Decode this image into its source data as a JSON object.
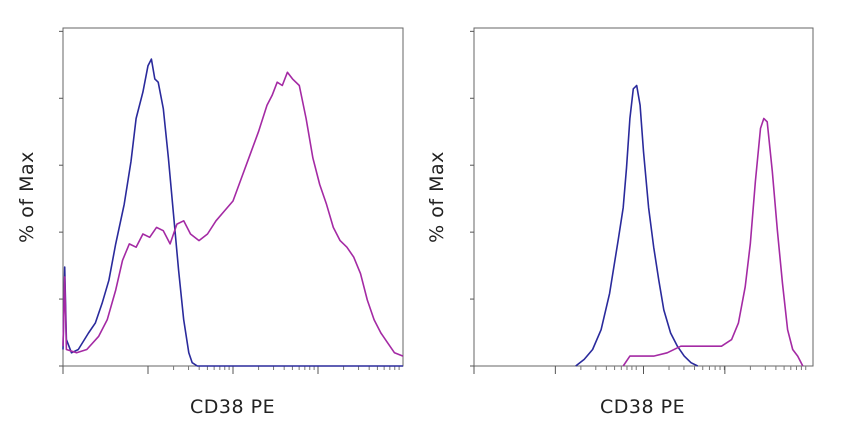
{
  "chart_data": [
    {
      "type": "line",
      "title": "",
      "xlabel": "CD38 PE",
      "ylabel": "% of Max",
      "x_scale": "log",
      "y_range": [
        0,
        100
      ],
      "series": [
        {
          "color": "#2a2a9c",
          "points": [
            [
              0.0,
              5
            ],
            [
              0.1,
              30
            ],
            [
              0.2,
              8
            ],
            [
              0.5,
              4
            ],
            [
              0.9,
              5
            ],
            [
              1.5,
              10
            ],
            [
              1.9,
              13
            ],
            [
              2.3,
              19
            ],
            [
              2.7,
              26
            ],
            [
              3.1,
              37
            ],
            [
              3.6,
              49
            ],
            [
              4.0,
              62
            ],
            [
              4.3,
              75
            ],
            [
              4.7,
              83
            ],
            [
              5.0,
              91
            ],
            [
              5.2,
              93
            ],
            [
              5.4,
              87
            ],
            [
              5.6,
              86
            ],
            [
              5.9,
              78
            ],
            [
              6.2,
              63
            ],
            [
              6.5,
              46
            ],
            [
              6.8,
              29
            ],
            [
              7.1,
              14
            ],
            [
              7.4,
              4
            ],
            [
              7.6,
              1
            ],
            [
              7.9,
              0
            ],
            [
              20.0,
              0
            ]
          ]
        },
        {
          "color": "#a42aa4",
          "points": [
            [
              0.0,
              6
            ],
            [
              0.1,
              27
            ],
            [
              0.2,
              5
            ],
            [
              0.8,
              4
            ],
            [
              1.4,
              5
            ],
            [
              2.1,
              9
            ],
            [
              2.6,
              14
            ],
            [
              3.1,
              23
            ],
            [
              3.5,
              32
            ],
            [
              3.9,
              37
            ],
            [
              4.3,
              36
            ],
            [
              4.7,
              40
            ],
            [
              5.1,
              39
            ],
            [
              5.5,
              42
            ],
            [
              5.9,
              41
            ],
            [
              6.3,
              37
            ],
            [
              6.7,
              43
            ],
            [
              7.1,
              44
            ],
            [
              7.5,
              40
            ],
            [
              8.0,
              38
            ],
            [
              8.5,
              40
            ],
            [
              9.0,
              44
            ],
            [
              9.5,
              47
            ],
            [
              10.0,
              50
            ],
            [
              10.5,
              57
            ],
            [
              11.0,
              64
            ],
            [
              11.5,
              71
            ],
            [
              12.0,
              79
            ],
            [
              12.3,
              82
            ],
            [
              12.6,
              86
            ],
            [
              12.9,
              85
            ],
            [
              13.2,
              89
            ],
            [
              13.5,
              87
            ],
            [
              13.9,
              85
            ],
            [
              14.3,
              75
            ],
            [
              14.7,
              63
            ],
            [
              15.1,
              55
            ],
            [
              15.5,
              49
            ],
            [
              15.9,
              42
            ],
            [
              16.3,
              38
            ],
            [
              16.7,
              36
            ],
            [
              17.1,
              33
            ],
            [
              17.5,
              28
            ],
            [
              17.9,
              20
            ],
            [
              18.3,
              14
            ],
            [
              18.7,
              10
            ],
            [
              19.1,
              7
            ],
            [
              19.5,
              4
            ],
            [
              20.0,
              3
            ]
          ]
        }
      ]
    },
    {
      "type": "line",
      "title": "",
      "xlabel": "CD38 PE",
      "ylabel": "% of Max",
      "x_scale": "log",
      "y_range": [
        0,
        100
      ],
      "series": [
        {
          "color": "#2a2a9c",
          "points": [
            [
              6.0,
              0
            ],
            [
              6.5,
              2
            ],
            [
              7.0,
              5
            ],
            [
              7.5,
              11
            ],
            [
              8.0,
              22
            ],
            [
              8.5,
              38
            ],
            [
              8.8,
              48
            ],
            [
              9.0,
              60
            ],
            [
              9.2,
              75
            ],
            [
              9.4,
              84
            ],
            [
              9.6,
              85
            ],
            [
              9.8,
              79
            ],
            [
              10.0,
              65
            ],
            [
              10.3,
              48
            ],
            [
              10.6,
              36
            ],
            [
              10.9,
              26
            ],
            [
              11.2,
              17
            ],
            [
              11.6,
              10
            ],
            [
              12.0,
              6
            ],
            [
              12.4,
              3
            ],
            [
              12.8,
              1
            ],
            [
              13.2,
              0
            ]
          ]
        },
        {
          "color": "#a42aa4",
          "points": [
            [
              8.8,
              0
            ],
            [
              9.2,
              3
            ],
            [
              10.6,
              3
            ],
            [
              11.4,
              4
            ],
            [
              12.2,
              6
            ],
            [
              14.6,
              6
            ],
            [
              15.2,
              8
            ],
            [
              15.6,
              13
            ],
            [
              16.0,
              24
            ],
            [
              16.3,
              37
            ],
            [
              16.6,
              56
            ],
            [
              16.9,
              72
            ],
            [
              17.1,
              75
            ],
            [
              17.3,
              74
            ],
            [
              17.6,
              59
            ],
            [
              17.9,
              41
            ],
            [
              18.2,
              25
            ],
            [
              18.5,
              11
            ],
            [
              18.8,
              5
            ],
            [
              19.1,
              3
            ],
            [
              19.4,
              0
            ]
          ]
        }
      ]
    }
  ]
}
